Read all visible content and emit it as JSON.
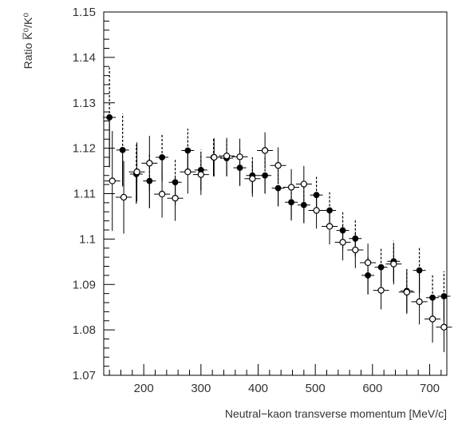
{
  "chart_data": {
    "type": "scatter",
    "title": "",
    "xlabel": "Neutral−kaon transverse momentum [MeV/c]",
    "ylabel": "Ratio K̅⁰/K⁰",
    "xlim": [
      130,
      730
    ],
    "ylim": [
      1.07,
      1.15
    ],
    "x_ticks": [
      200,
      300,
      400,
      500,
      600,
      700
    ],
    "x_tick_labels": [
      "200",
      "300",
      "400",
      "500",
      "600",
      "700"
    ],
    "y_ticks": [
      1.07,
      1.08,
      1.09,
      1.1,
      1.11,
      1.12,
      1.13,
      1.14,
      1.15
    ],
    "y_tick_labels": [
      "1.07",
      "1.08",
      "1.09",
      "1.1",
      "1.11",
      "1.12",
      "1.13",
      "1.14",
      "1.15"
    ],
    "grid": false,
    "legend": "none",
    "series": [
      {
        "marker": "filled-circle",
        "color": "#000000",
        "x": [
          140,
          163,
          187,
          210,
          232,
          255,
          277,
          300,
          322,
          345,
          368,
          390,
          412,
          435,
          458,
          480,
          502,
          525,
          548,
          570,
          592,
          615,
          637,
          660,
          682,
          705,
          725
        ],
        "y": [
          1.1268,
          1.1196,
          1.1143,
          1.1128,
          1.118,
          1.1125,
          1.1195,
          1.1152,
          1.118,
          1.1178,
          1.1157,
          1.114,
          1.114,
          1.1112,
          1.1081,
          1.1075,
          1.1097,
          1.1063,
          1.1019,
          1.1001,
          1.092,
          1.0938,
          1.0951,
          1.0886,
          1.0931,
          1.0871,
          1.0874
        ],
        "yerr": [
          0.011,
          0.008,
          0.0065,
          0.006,
          0.0052,
          0.005,
          0.0048,
          0.0045,
          0.0042,
          0.004,
          0.004,
          0.004,
          0.004,
          0.004,
          0.004,
          0.004,
          0.004,
          0.004,
          0.004,
          0.004,
          0.0042,
          0.0042,
          0.0045,
          0.0048,
          0.005,
          0.0052,
          0.0055
        ]
      },
      {
        "marker": "open-circle",
        "color": "#000000",
        "x": [
          145,
          165,
          188,
          210,
          232,
          255,
          277,
          300,
          323,
          345,
          368,
          390,
          412,
          435,
          458,
          480,
          502,
          525,
          548,
          570,
          592,
          615,
          637,
          660,
          682,
          705,
          725
        ],
        "y": [
          1.1128,
          1.1092,
          1.1148,
          1.1167,
          1.1099,
          1.109,
          1.1148,
          1.1142,
          1.118,
          1.1183,
          1.1181,
          1.1133,
          1.1195,
          1.1162,
          1.1114,
          1.1121,
          1.1063,
          1.1028,
          1.0993,
          1.0976,
          1.0948,
          1.0887,
          1.0945,
          1.0883,
          1.0862,
          1.0824,
          1.0806
        ]
      }
    ]
  }
}
